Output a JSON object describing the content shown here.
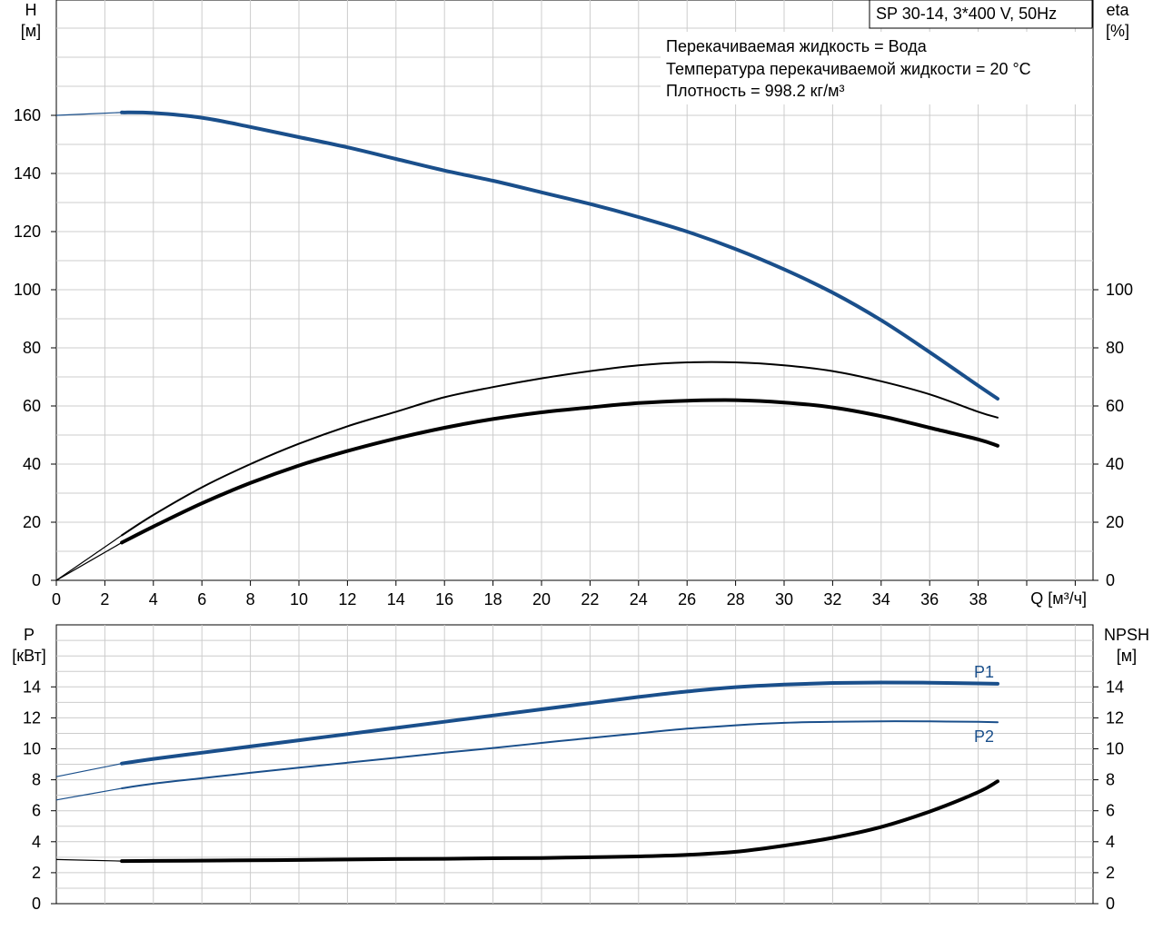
{
  "chart_data": [
    {
      "type": "line",
      "title": "SP 30-14, 3*400 V, 50Hz",
      "annotations": [
        "Перекачиваемая жидкость = Вода",
        "Температура перекачиваемой жидкости = 20 °C",
        "Плотность = 998.2 кг/м³"
      ],
      "xlabel": "Q [м³/ч]",
      "ylabel_left": [
        "H",
        "[м]"
      ],
      "ylabel_right": [
        "eta",
        "[%]"
      ],
      "xlim": [
        0,
        42
      ],
      "ylim_left": [
        0,
        160
      ],
      "ylim_right": [
        0,
        100
      ],
      "x_ticks": [
        "0",
        "2",
        "4",
        "6",
        "8",
        "10",
        "12",
        "14",
        "16",
        "18",
        "20",
        "22",
        "24",
        "26",
        "28",
        "30",
        "32",
        "34",
        "36",
        "38"
      ],
      "y_ticks_left": [
        "0",
        "20",
        "40",
        "60",
        "80",
        "100",
        "120",
        "140",
        "160"
      ],
      "y_ticks_right": [
        "0",
        "20",
        "40",
        "60",
        "80",
        "100"
      ],
      "grid": true,
      "series": [
        {
          "color": "#1a4f8b",
          "axis": "left",
          "x": [
            0,
            2.7,
            4,
            6,
            8,
            10,
            12,
            14,
            16,
            18,
            20,
            22,
            24,
            26,
            28,
            30,
            32,
            34,
            36,
            38,
            38.8
          ],
          "values": [
            160,
            161,
            160.8,
            159.2,
            156,
            152.5,
            149,
            145,
            141,
            137.5,
            133.5,
            129.5,
            125,
            120,
            114,
            107,
            99,
            89.5,
            78.5,
            67,
            62.5
          ]
        },
        {
          "color": "#000000",
          "axis": "right",
          "x": [
            0,
            2.7,
            4,
            6,
            8,
            10,
            12,
            14,
            16,
            18,
            20,
            22,
            24,
            26,
            28,
            30,
            32,
            34,
            36,
            38,
            38.8
          ],
          "values": [
            0,
            15.5,
            22.5,
            32,
            40,
            47,
            53,
            58,
            63,
            66.5,
            69.5,
            72,
            74,
            75,
            75,
            74,
            72,
            68.5,
            64,
            58,
            56
          ]
        },
        {
          "color": "#000000",
          "axis": "right",
          "x": [
            0,
            2.7,
            4,
            6,
            8,
            10,
            12,
            14,
            16,
            18,
            20,
            22,
            24,
            26,
            28,
            30,
            32,
            34,
            36,
            38,
            38.8
          ],
          "values": [
            0,
            13,
            18.5,
            26.5,
            33.5,
            39.5,
            44.5,
            48.8,
            52.5,
            55.5,
            57.8,
            59.5,
            61,
            61.8,
            62,
            61.2,
            59.5,
            56.5,
            52.5,
            48.5,
            46.3
          ]
        }
      ]
    },
    {
      "type": "line",
      "xlim": [
        0,
        42
      ],
      "ylabel_left": [
        "P",
        "[кВт]"
      ],
      "ylabel_right": [
        "NPSH",
        "[м]"
      ],
      "ylim_left": [
        0,
        16
      ],
      "ylim_right": [
        0,
        16
      ],
      "y_ticks_left": [
        "0",
        "2",
        "4",
        "6",
        "8",
        "10",
        "12",
        "14"
      ],
      "y_ticks_right": [
        "0",
        "2",
        "4",
        "6",
        "8",
        "10",
        "12",
        "14"
      ],
      "grid": true,
      "series": [
        {
          "name": "P1",
          "color": "#1a4f8b",
          "axis": "left",
          "x": [
            0,
            2.7,
            4,
            6,
            8,
            10,
            12,
            14,
            16,
            18,
            20,
            22,
            24,
            26,
            28,
            30,
            32,
            34,
            36,
            38,
            38.8
          ],
          "values": [
            8.2,
            9.05,
            9.35,
            9.75,
            10.15,
            10.55,
            10.95,
            11.35,
            11.75,
            12.15,
            12.55,
            12.95,
            13.35,
            13.7,
            13.98,
            14.15,
            14.25,
            14.28,
            14.27,
            14.22,
            14.2
          ]
        },
        {
          "name": "P2",
          "color": "#1a4f8b",
          "axis": "left",
          "x": [
            0,
            2.7,
            4,
            6,
            8,
            10,
            12,
            14,
            16,
            18,
            20,
            22,
            24,
            26,
            28,
            30,
            32,
            34,
            36,
            38,
            38.8
          ],
          "values": [
            6.7,
            7.45,
            7.75,
            8.1,
            8.45,
            8.78,
            9.1,
            9.42,
            9.75,
            10.05,
            10.38,
            10.7,
            11,
            11.3,
            11.52,
            11.68,
            11.75,
            11.78,
            11.77,
            11.74,
            11.72
          ]
        },
        {
          "color": "#000000",
          "axis": "right",
          "x": [
            0,
            2.7,
            4,
            6,
            8,
            10,
            12,
            14,
            16,
            18,
            20,
            22,
            24,
            26,
            28,
            30,
            32,
            34,
            36,
            38,
            38.8
          ],
          "values": [
            2.85,
            2.75,
            2.76,
            2.78,
            2.8,
            2.82,
            2.85,
            2.88,
            2.9,
            2.93,
            2.95,
            3.0,
            3.05,
            3.15,
            3.35,
            3.75,
            4.25,
            4.95,
            5.95,
            7.2,
            7.9
          ]
        }
      ]
    }
  ]
}
